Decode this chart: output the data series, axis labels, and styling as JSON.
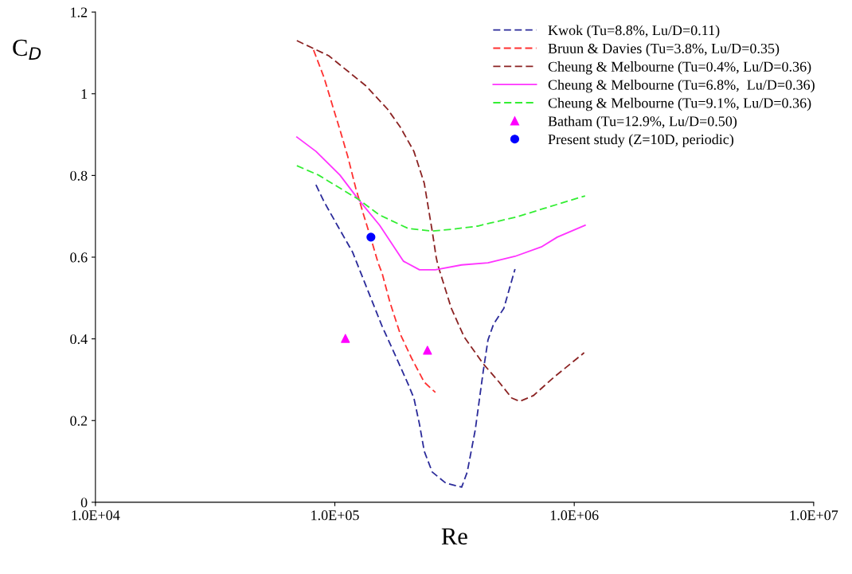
{
  "chart_data": {
    "type": "line",
    "xlabel": "Re",
    "ylabel": "C$_{D}$",
    "log": "x",
    "grid": false,
    "legend": "top right",
    "xlim": [
      10000,
      10000000
    ],
    "xticks": [
      {
        "value": 10000,
        "label": "1.0E+04"
      },
      {
        "value": 100000,
        "label": "1.0E+05"
      },
      {
        "value": 1000000,
        "label": "1.0E+06"
      },
      {
        "value": 10000000,
        "label": "1.0E+07"
      }
    ],
    "ylim": [
      0,
      1.2
    ],
    "yticks": [
      0,
      0.2,
      0.4,
      0.6,
      0.8,
      1,
      1.2
    ],
    "series": [
      {
        "name": "Kwok (Tu=8.8%, Lu/D=0.11)",
        "color": "#2b2b9a",
        "line_style": "dashed",
        "x": [
          83400,
          90100,
          103300,
          118700,
          122400,
          138300,
          157500,
          179400,
          202800,
          213900,
          225700,
          236300,
          255100,
          290500,
          338700,
          357300,
          385900,
          416600,
          436100,
          460200,
          508200,
          565700
        ],
        "values": [
          0.777,
          0.736,
          0.674,
          0.612,
          0.592,
          0.514,
          0.431,
          0.358,
          0.288,
          0.255,
          0.191,
          0.125,
          0.074,
          0.047,
          0.037,
          0.074,
          0.177,
          0.32,
          0.397,
          0.436,
          0.475,
          0.571
        ]
      },
      {
        "name": "Bruun & Davies (Tu=3.8%, Lu/D=0.35)",
        "color": "#ff3030",
        "line_style": "dashed",
        "x": [
          81500,
          90100,
          97200,
          105000,
          113300,
          122400,
          132000,
          142600,
          151600,
          157500,
          170000,
          187800,
          209100,
          236300,
          263000
        ],
        "values": [
          1.107,
          1.04,
          0.976,
          0.912,
          0.846,
          0.768,
          0.703,
          0.639,
          0.586,
          0.561,
          0.489,
          0.411,
          0.353,
          0.294,
          0.269
        ]
      },
      {
        "name": "Cheung & Melbourne (Tu=0.4%, Lu/D=0.36)",
        "color": "#8b2323",
        "line_style": "dashed",
        "x": [
          69400,
          94300,
          135100,
          166200,
          187800,
          213900,
          236300,
          255100,
          265000,
          269200,
          306500,
          346600,
          416600,
          485500,
          548600,
          592300,
          674600,
          829700,
          1100000
        ],
        "values": [
          1.13,
          1.093,
          1.019,
          0.962,
          0.918,
          0.859,
          0.781,
          0.664,
          0.6,
          0.581,
          0.475,
          0.405,
          0.339,
          0.294,
          0.255,
          0.247,
          0.261,
          0.308,
          0.366
        ]
      },
      {
        "name": "Cheung & Melbourne (Tu=6.8%,  Lu/D=0.36)",
        "color": "#ff33ff",
        "line_style": "solid",
        "x": [
          69400,
          83400,
          105000,
          125200,
          153900,
          193600,
          225700,
          263000,
          338700,
          436100,
          565700,
          728300,
          849100,
          1110000
        ],
        "values": [
          0.894,
          0.859,
          0.801,
          0.742,
          0.678,
          0.59,
          0.569,
          0.569,
          0.581,
          0.586,
          0.602,
          0.625,
          0.649,
          0.678
        ]
      },
      {
        "name": "Cheung & Melbourne (Tu=9.1%, Lu/D=0.36)",
        "color": "#33ee33",
        "line_style": "dotted",
        "x": [
          69400,
          85400,
          109900,
          125200,
          153900,
          202800,
          255100,
          306500,
          394800,
          449700,
          578900,
          745200,
          1110000
        ],
        "values": [
          0.824,
          0.801,
          0.762,
          0.742,
          0.703,
          0.67,
          0.664,
          0.668,
          0.676,
          0.684,
          0.699,
          0.719,
          0.75
        ]
      },
      {
        "name": "Batham (Tu=12.9%, Lu/D=0.50)",
        "type": "scatter",
        "color": "#ff00ff",
        "marker": "triangle",
        "x": [
          110700,
          243700
        ],
        "values": [
          0.401,
          0.372
        ]
      },
      {
        "name": "Present study (Z=10D, periodic)",
        "type": "scatter",
        "color": "#0000ff",
        "marker": "circle",
        "x": [
          141500
        ],
        "values": [
          0.649
        ]
      }
    ]
  }
}
